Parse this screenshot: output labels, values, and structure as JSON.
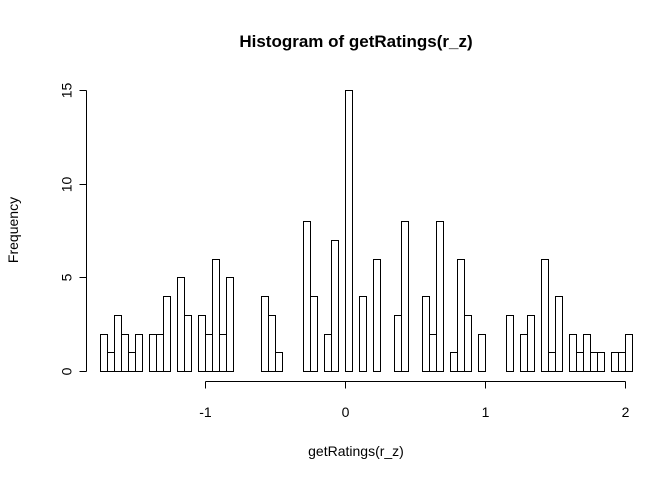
{
  "chart_data": {
    "type": "histogram",
    "title": "Histogram of getRatings(r_z)",
    "xlabel": "getRatings(r_z)",
    "ylabel": "Frequency",
    "xlim": [
      -1.75,
      2.0
    ],
    "ylim": [
      0,
      15
    ],
    "xticks": [
      -1,
      0,
      1,
      2
    ],
    "xtick_labels": [
      "-1",
      "0",
      "1",
      "2"
    ],
    "yticks": [
      0,
      5,
      10,
      15
    ],
    "ytick_labels": [
      "0",
      "5",
      "10",
      "15"
    ],
    "bin_width": 0.05,
    "bin_start": -1.75,
    "counts": [
      2,
      1,
      3,
      2,
      1,
      2,
      0,
      2,
      2,
      4,
      0,
      5,
      3,
      0,
      3,
      2,
      6,
      2,
      5,
      0,
      0,
      0,
      0,
      4,
      3,
      1,
      0,
      0,
      0,
      8,
      4,
      0,
      2,
      7,
      0,
      15,
      0,
      4,
      0,
      6,
      0,
      0,
      3,
      8,
      0,
      0,
      4,
      2,
      8,
      0,
      1,
      6,
      3,
      0,
      2,
      0,
      0,
      0,
      3,
      0,
      2,
      3,
      0,
      6,
      1,
      4,
      0,
      2,
      1,
      2,
      1,
      1,
      0,
      1,
      1,
      2
    ],
    "bar_fill": "#ffffff",
    "bar_stroke": "#000000",
    "grid": false
  }
}
